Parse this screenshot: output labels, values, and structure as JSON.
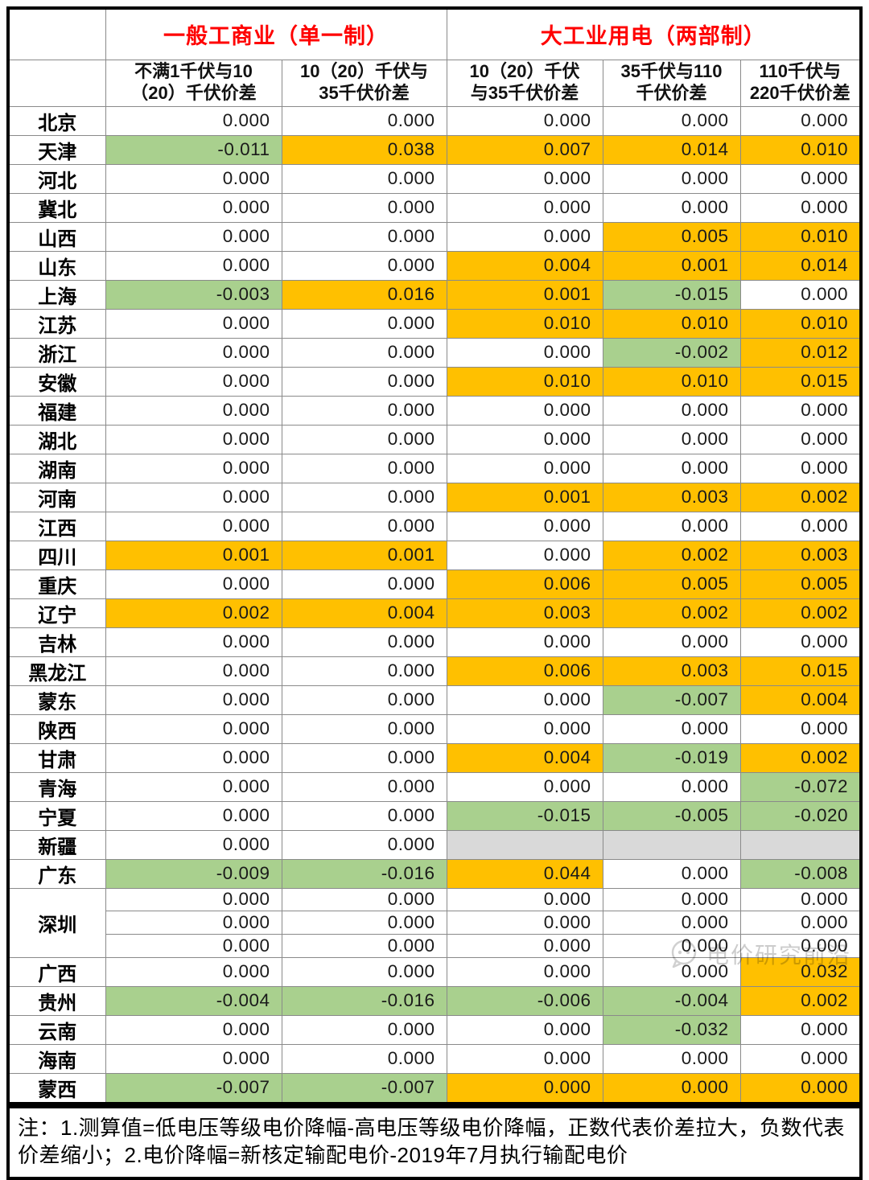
{
  "chart_data": {
    "type": "table",
    "group_headers": [
      {
        "label": "一般工商业（单一制）",
        "colspan": 2
      },
      {
        "label": "大工业用电（两部制）",
        "colspan": 3
      }
    ],
    "column_headers": [
      "不满1千伏与10\n（20）千伏价差",
      "10（20）千伏与\n35千伏价差",
      "10（20）千伏\n与35千伏价差",
      "35千伏与110\n千伏价差",
      "110千伏与\n220千伏价差"
    ],
    "cell_bg_codes": {
      "w": "white / no change",
      "o": "orange / positive gap widened",
      "g": "green / negative gap narrowed",
      "e": "gray / no data"
    },
    "rows": [
      {
        "province": "北京",
        "rowspan": 1,
        "cells": [
          [
            "0.000",
            "w"
          ],
          [
            "0.000",
            "w"
          ],
          [
            "0.000",
            "w"
          ],
          [
            "0.000",
            "w"
          ],
          [
            "0.000",
            "w"
          ]
        ]
      },
      {
        "province": "天津",
        "rowspan": 1,
        "cells": [
          [
            "-0.011",
            "g"
          ],
          [
            "0.038",
            "o"
          ],
          [
            "0.007",
            "o"
          ],
          [
            "0.014",
            "o"
          ],
          [
            "0.010",
            "o"
          ]
        ]
      },
      {
        "province": "河北",
        "rowspan": 1,
        "cells": [
          [
            "0.000",
            "w"
          ],
          [
            "0.000",
            "w"
          ],
          [
            "0.000",
            "w"
          ],
          [
            "0.000",
            "w"
          ],
          [
            "0.000",
            "w"
          ]
        ]
      },
      {
        "province": "冀北",
        "rowspan": 1,
        "cells": [
          [
            "0.000",
            "w"
          ],
          [
            "0.000",
            "w"
          ],
          [
            "0.000",
            "w"
          ],
          [
            "0.000",
            "w"
          ],
          [
            "0.000",
            "w"
          ]
        ]
      },
      {
        "province": "山西",
        "rowspan": 1,
        "cells": [
          [
            "0.000",
            "w"
          ],
          [
            "0.000",
            "w"
          ],
          [
            "0.000",
            "w"
          ],
          [
            "0.005",
            "o"
          ],
          [
            "0.010",
            "o"
          ]
        ]
      },
      {
        "province": "山东",
        "rowspan": 1,
        "cells": [
          [
            "0.000",
            "w"
          ],
          [
            "0.000",
            "w"
          ],
          [
            "0.004",
            "o"
          ],
          [
            "0.001",
            "o"
          ],
          [
            "0.014",
            "o"
          ]
        ]
      },
      {
        "province": "上海",
        "rowspan": 1,
        "cells": [
          [
            "-0.003",
            "g"
          ],
          [
            "0.016",
            "o"
          ],
          [
            "0.001",
            "o"
          ],
          [
            "-0.015",
            "g"
          ],
          [
            "0.000",
            "w"
          ]
        ]
      },
      {
        "province": "江苏",
        "rowspan": 1,
        "cells": [
          [
            "0.000",
            "w"
          ],
          [
            "0.000",
            "w"
          ],
          [
            "0.010",
            "o"
          ],
          [
            "0.010",
            "o"
          ],
          [
            "0.010",
            "o"
          ]
        ]
      },
      {
        "province": "浙江",
        "rowspan": 1,
        "cells": [
          [
            "0.000",
            "w"
          ],
          [
            "0.000",
            "w"
          ],
          [
            "0.000",
            "w"
          ],
          [
            "-0.002",
            "g"
          ],
          [
            "0.012",
            "o"
          ]
        ]
      },
      {
        "province": "安徽",
        "rowspan": 1,
        "cells": [
          [
            "0.000",
            "w"
          ],
          [
            "0.000",
            "w"
          ],
          [
            "0.010",
            "o"
          ],
          [
            "0.010",
            "o"
          ],
          [
            "0.015",
            "o"
          ]
        ]
      },
      {
        "province": "福建",
        "rowspan": 1,
        "cells": [
          [
            "0.000",
            "w"
          ],
          [
            "0.000",
            "w"
          ],
          [
            "0.000",
            "w"
          ],
          [
            "0.000",
            "w"
          ],
          [
            "0.000",
            "w"
          ]
        ]
      },
      {
        "province": "湖北",
        "rowspan": 1,
        "cells": [
          [
            "0.000",
            "w"
          ],
          [
            "0.000",
            "w"
          ],
          [
            "0.000",
            "w"
          ],
          [
            "0.000",
            "w"
          ],
          [
            "0.000",
            "w"
          ]
        ]
      },
      {
        "province": "湖南",
        "rowspan": 1,
        "cells": [
          [
            "0.000",
            "w"
          ],
          [
            "0.000",
            "w"
          ],
          [
            "0.000",
            "w"
          ],
          [
            "0.000",
            "w"
          ],
          [
            "0.000",
            "w"
          ]
        ]
      },
      {
        "province": "河南",
        "rowspan": 1,
        "cells": [
          [
            "0.000",
            "w"
          ],
          [
            "0.000",
            "w"
          ],
          [
            "0.001",
            "o"
          ],
          [
            "0.003",
            "o"
          ],
          [
            "0.002",
            "o"
          ]
        ]
      },
      {
        "province": "江西",
        "rowspan": 1,
        "cells": [
          [
            "0.000",
            "w"
          ],
          [
            "0.000",
            "w"
          ],
          [
            "0.000",
            "w"
          ],
          [
            "0.000",
            "w"
          ],
          [
            "0.000",
            "w"
          ]
        ]
      },
      {
        "province": "四川",
        "rowspan": 1,
        "cells": [
          [
            "0.001",
            "o"
          ],
          [
            "0.001",
            "o"
          ],
          [
            "0.000",
            "w"
          ],
          [
            "0.002",
            "o"
          ],
          [
            "0.003",
            "o"
          ]
        ]
      },
      {
        "province": "重庆",
        "rowspan": 1,
        "cells": [
          [
            "0.000",
            "w"
          ],
          [
            "0.000",
            "w"
          ],
          [
            "0.006",
            "o"
          ],
          [
            "0.005",
            "o"
          ],
          [
            "0.005",
            "o"
          ]
        ]
      },
      {
        "province": "辽宁",
        "rowspan": 1,
        "cells": [
          [
            "0.002",
            "o"
          ],
          [
            "0.004",
            "o"
          ],
          [
            "0.003",
            "o"
          ],
          [
            "0.002",
            "o"
          ],
          [
            "0.002",
            "o"
          ]
        ]
      },
      {
        "province": "吉林",
        "rowspan": 1,
        "cells": [
          [
            "0.000",
            "w"
          ],
          [
            "0.000",
            "w"
          ],
          [
            "0.000",
            "w"
          ],
          [
            "0.000",
            "w"
          ],
          [
            "0.000",
            "w"
          ]
        ]
      },
      {
        "province": "黑龙江",
        "rowspan": 1,
        "cells": [
          [
            "0.000",
            "w"
          ],
          [
            "0.000",
            "w"
          ],
          [
            "0.006",
            "o"
          ],
          [
            "0.003",
            "o"
          ],
          [
            "0.015",
            "o"
          ]
        ]
      },
      {
        "province": "蒙东",
        "rowspan": 1,
        "cells": [
          [
            "0.000",
            "w"
          ],
          [
            "0.000",
            "w"
          ],
          [
            "0.000",
            "w"
          ],
          [
            "-0.007",
            "g"
          ],
          [
            "0.004",
            "o"
          ]
        ]
      },
      {
        "province": "陕西",
        "rowspan": 1,
        "cells": [
          [
            "0.000",
            "w"
          ],
          [
            "0.000",
            "w"
          ],
          [
            "0.000",
            "w"
          ],
          [
            "0.000",
            "w"
          ],
          [
            "0.000",
            "w"
          ]
        ]
      },
      {
        "province": "甘肃",
        "rowspan": 1,
        "cells": [
          [
            "0.000",
            "w"
          ],
          [
            "0.000",
            "w"
          ],
          [
            "0.004",
            "o"
          ],
          [
            "-0.019",
            "g"
          ],
          [
            "0.002",
            "o"
          ]
        ]
      },
      {
        "province": "青海",
        "rowspan": 1,
        "cells": [
          [
            "0.000",
            "w"
          ],
          [
            "0.000",
            "w"
          ],
          [
            "0.000",
            "w"
          ],
          [
            "0.000",
            "w"
          ],
          [
            "-0.072",
            "g"
          ]
        ]
      },
      {
        "province": "宁夏",
        "rowspan": 1,
        "cells": [
          [
            "0.000",
            "w"
          ],
          [
            "0.000",
            "w"
          ],
          [
            "-0.015",
            "g"
          ],
          [
            "-0.005",
            "g"
          ],
          [
            "-0.020",
            "g"
          ]
        ]
      },
      {
        "province": "新疆",
        "rowspan": 1,
        "cells": [
          [
            "0.000",
            "w"
          ],
          [
            "0.000",
            "w"
          ],
          [
            "",
            "e"
          ],
          [
            "",
            "e"
          ],
          [
            "",
            "e"
          ]
        ]
      },
      {
        "province": "广东",
        "rowspan": 1,
        "cells": [
          [
            "-0.009",
            "g"
          ],
          [
            "-0.016",
            "g"
          ],
          [
            "0.044",
            "o"
          ],
          [
            "0.000",
            "w"
          ],
          [
            "-0.008",
            "g"
          ]
        ]
      },
      {
        "province": "深圳",
        "rowspan": 3,
        "cells": [
          [
            "0.000",
            "w"
          ],
          [
            "0.000",
            "w"
          ],
          [
            "0.000",
            "w"
          ],
          [
            "0.000",
            "w"
          ],
          [
            "0.000",
            "w"
          ]
        ]
      },
      {
        "province": null,
        "rowspan": 1,
        "cells": [
          [
            "0.000",
            "w"
          ],
          [
            "0.000",
            "w"
          ],
          [
            "0.000",
            "w"
          ],
          [
            "0.000",
            "w"
          ],
          [
            "0.000",
            "w"
          ]
        ]
      },
      {
        "province": null,
        "rowspan": 1,
        "cells": [
          [
            "0.000",
            "w"
          ],
          [
            "0.000",
            "w"
          ],
          [
            "0.000",
            "w"
          ],
          [
            "0.000",
            "w"
          ],
          [
            "0.000",
            "w"
          ]
        ]
      },
      {
        "province": "广西",
        "rowspan": 1,
        "cells": [
          [
            "0.000",
            "w"
          ],
          [
            "0.000",
            "w"
          ],
          [
            "0.000",
            "w"
          ],
          [
            "0.000",
            "w"
          ],
          [
            "0.032",
            "o"
          ]
        ]
      },
      {
        "province": "贵州",
        "rowspan": 1,
        "cells": [
          [
            "-0.004",
            "g"
          ],
          [
            "-0.016",
            "g"
          ],
          [
            "-0.006",
            "g"
          ],
          [
            "-0.004",
            "g"
          ],
          [
            "0.002",
            "o"
          ]
        ]
      },
      {
        "province": "云南",
        "rowspan": 1,
        "cells": [
          [
            "0.000",
            "w"
          ],
          [
            "0.000",
            "w"
          ],
          [
            "0.000",
            "w"
          ],
          [
            "-0.032",
            "g"
          ],
          [
            "0.000",
            "w"
          ]
        ]
      },
      {
        "province": "海南",
        "rowspan": 1,
        "cells": [
          [
            "0.000",
            "w"
          ],
          [
            "0.000",
            "w"
          ],
          [
            "0.000",
            "w"
          ],
          [
            "0.000",
            "w"
          ],
          [
            "0.000",
            "w"
          ]
        ]
      },
      {
        "province": "蒙西",
        "rowspan": 1,
        "cells": [
          [
            "-0.007",
            "g"
          ],
          [
            "-0.007",
            "g"
          ],
          [
            "0.000",
            "o"
          ],
          [
            "0.000",
            "o"
          ],
          [
            "0.000",
            "o"
          ]
        ]
      }
    ]
  },
  "note": {
    "text": "注：1.测算值=低电压等级电价降幅-高电压等级电价降幅，正数代表价差拉大，负数代表价差缩小；2.电价降幅=新核定输配电价-2019年7月执行输配电价"
  },
  "watermark": {
    "label": "电价研究前沿",
    "icon": "chat-bubble-icon"
  },
  "colors": {
    "positive_bg": "#FFC000",
    "negative_bg": "#A9D08E",
    "no_data_bg": "#D9D9D9",
    "group_header_text": "#FF0000"
  }
}
